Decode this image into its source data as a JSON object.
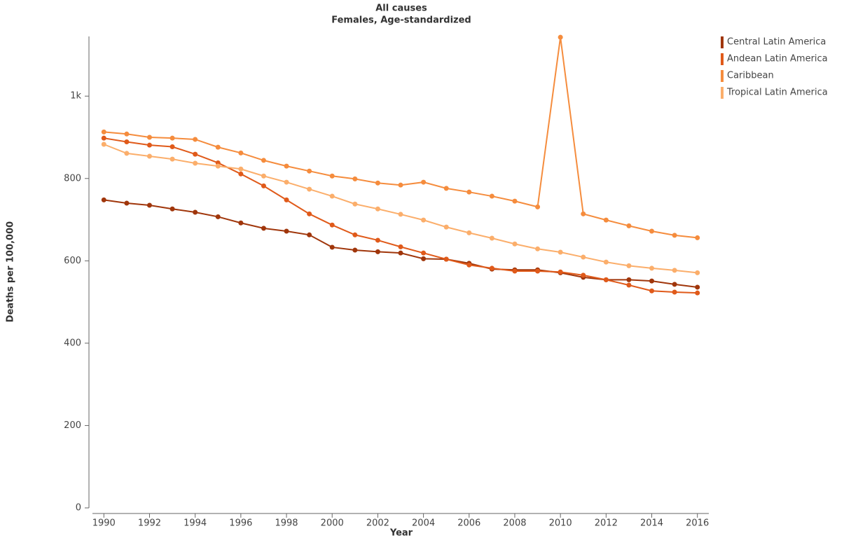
{
  "chart_data": {
    "type": "line",
    "title": "All causes",
    "subtitle": "Females, Age-standardized",
    "x_label": "Year",
    "y_label": "Deaths per 100,000",
    "x": [
      1990,
      1991,
      1992,
      1993,
      1994,
      1995,
      1996,
      1997,
      1998,
      1999,
      2000,
      2001,
      2002,
      2003,
      2004,
      2005,
      2006,
      2007,
      2008,
      2009,
      2010,
      2011,
      2012,
      2013,
      2014,
      2015,
      2016
    ],
    "xlim": [
      1989.5,
      2016.5
    ],
    "xticks": [
      1990,
      1992,
      1994,
      1996,
      1998,
      2000,
      2002,
      2004,
      2006,
      2008,
      2010,
      2012,
      2014,
      2016
    ],
    "ylim": [
      0,
      1145
    ],
    "yticks": [
      0,
      200,
      400,
      600,
      800,
      {
        "value": 1000,
        "label": "1k"
      }
    ],
    "legend": "top-right",
    "series": [
      {
        "name": "Central Latin America",
        "color": "#a0360b",
        "values": [
          748,
          740,
          735,
          726,
          718,
          707,
          692,
          679,
          672,
          663,
          633,
          626,
          622,
          619,
          605,
          604,
          594,
          580,
          578,
          578,
          571,
          560,
          554,
          554,
          551,
          543,
          536
        ]
      },
      {
        "name": "Andean Latin America",
        "color": "#e05a1a",
        "values": [
          898,
          889,
          881,
          877,
          859,
          838,
          811,
          782,
          748,
          714,
          687,
          663,
          650,
          634,
          619,
          604,
          590,
          582,
          575,
          575,
          573,
          565,
          554,
          541,
          527,
          524,
          522
        ]
      },
      {
        "name": "Caribbean",
        "color": "#f58c3d",
        "values": [
          913,
          908,
          900,
          898,
          895,
          876,
          862,
          844,
          830,
          818,
          806,
          799,
          789,
          784,
          791,
          776,
          767,
          757,
          745,
          731,
          1143,
          714,
          699,
          685,
          672,
          662,
          656
        ]
      },
      {
        "name": "Tropical Latin America",
        "color": "#fbae6b",
        "values": [
          883,
          861,
          854,
          847,
          837,
          830,
          823,
          806,
          791,
          774,
          757,
          738,
          726,
          713,
          699,
          682,
          668,
          655,
          641,
          629,
          621,
          609,
          597,
          588,
          582,
          577,
          571
        ]
      }
    ]
  }
}
